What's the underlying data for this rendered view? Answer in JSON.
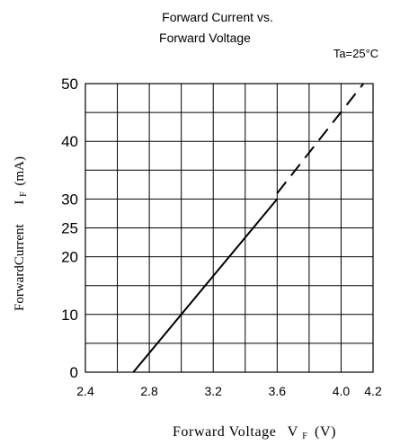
{
  "chart_data": {
    "type": "line",
    "title_line1": "Forward Current vs.",
    "title_line2": "Forward Voltage",
    "annotation": "Ta=25°C",
    "xlabel_main": "Forward Voltage",
    "xlabel_symbol": "V",
    "xlabel_sub": "F",
    "xlabel_unit": "(V)",
    "ylabel_main": "ForwardCurrent",
    "ylabel_symbol": "I",
    "ylabel_sub": "F",
    "ylabel_unit": "(mA)",
    "xlim": [
      2.4,
      4.2
    ],
    "ylim": [
      0,
      50
    ],
    "x_ticks": [
      {
        "value": 2.4,
        "label": "2.4"
      },
      {
        "value": 2.8,
        "label": "2.8"
      },
      {
        "value": 3.2,
        "label": "3.2"
      },
      {
        "value": 3.6,
        "label": "3.6"
      },
      {
        "value": 4.0,
        "label": "4.0"
      },
      {
        "value": 4.2,
        "label": "4.2"
      }
    ],
    "y_ticks": [
      {
        "value": 0,
        "label": "0"
      },
      {
        "value": 10,
        "label": "10"
      },
      {
        "value": 20,
        "label": "20"
      },
      {
        "value": 25,
        "label": "25"
      },
      {
        "value": 30,
        "label": "30"
      },
      {
        "value": 40,
        "label": "40"
      },
      {
        "value": 50,
        "label": "50"
      }
    ],
    "grid_x": [
      2.4,
      2.6,
      2.8,
      3.0,
      3.2,
      3.4,
      3.6,
      3.8,
      4.0,
      4.2
    ],
    "grid_y": [
      0,
      5,
      10,
      15,
      20,
      25,
      30,
      35,
      40,
      45,
      50
    ],
    "grid": true,
    "series": [
      {
        "style": "solid",
        "points": [
          [
            2.7,
            0
          ],
          [
            3.6,
            30
          ]
        ]
      },
      {
        "style": "dashed",
        "points": [
          [
            3.6,
            31
          ],
          [
            4.14,
            50
          ]
        ]
      }
    ],
    "line_color": "#000000"
  }
}
